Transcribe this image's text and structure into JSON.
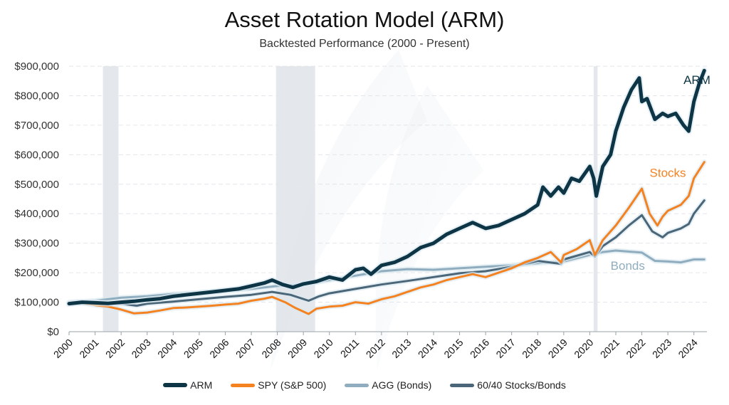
{
  "chart_data": {
    "type": "line",
    "title": "Asset Rotation Model (ARM)",
    "subtitle": "Backtested Performance (2000 - Present)",
    "ylim": [
      0,
      900000
    ],
    "yticks": [
      "$0",
      "$100,000",
      "$200,000",
      "$300,000",
      "$400,000",
      "$500,000",
      "$600,000",
      "$700,000",
      "$800,000",
      "$900,000"
    ],
    "xlim": [
      2000,
      2024.5
    ],
    "xticks": [
      "2000",
      "2001",
      "2002",
      "2003",
      "2004",
      "2005",
      "2006",
      "2007",
      "2008",
      "2009",
      "2010",
      "2011",
      "2012",
      "2013",
      "2014",
      "2015",
      "2016",
      "2017",
      "2018",
      "2019",
      "2020",
      "2021",
      "2022",
      "2023",
      "2024"
    ],
    "grid": true,
    "legend_position": "bottom",
    "shaded_periods": [
      [
        2001.3,
        2001.9
      ],
      [
        2007.95,
        2009.45
      ],
      [
        2020.15,
        2020.3
      ]
    ],
    "end_labels": [
      "ARM",
      "Stocks",
      "Bonds"
    ],
    "series": [
      {
        "name": "ARM",
        "color": "#0d3545",
        "x": [
          2000,
          2000.5,
          2001,
          2001.5,
          2002,
          2002.5,
          2003,
          2003.5,
          2004,
          2004.5,
          2005,
          2005.5,
          2006,
          2006.5,
          2007,
          2007.5,
          2007.8,
          2008.2,
          2008.6,
          2009,
          2009.5,
          2010,
          2010.5,
          2011,
          2011.3,
          2011.6,
          2012,
          2012.5,
          2013,
          2013.5,
          2014,
          2014.5,
          2015,
          2015.5,
          2016,
          2016.5,
          2017,
          2017.5,
          2018,
          2018.2,
          2018.5,
          2018.8,
          2019,
          2019.3,
          2019.6,
          2020,
          2020.15,
          2020.25,
          2020.5,
          2020.8,
          2021,
          2021.3,
          2021.6,
          2021.9,
          2022,
          2022.2,
          2022.5,
          2022.8,
          2023,
          2023.3,
          2023.6,
          2023.8,
          2024,
          2024.2,
          2024.4
        ],
        "values": [
          95000,
          100000,
          98000,
          96000,
          100000,
          103000,
          108000,
          112000,
          120000,
          125000,
          130000,
          135000,
          140000,
          145000,
          155000,
          165000,
          175000,
          160000,
          150000,
          162000,
          170000,
          185000,
          175000,
          210000,
          215000,
          195000,
          225000,
          235000,
          255000,
          285000,
          300000,
          330000,
          350000,
          370000,
          350000,
          360000,
          380000,
          400000,
          430000,
          490000,
          460000,
          490000,
          470000,
          520000,
          510000,
          560000,
          520000,
          460000,
          560000,
          600000,
          680000,
          760000,
          820000,
          860000,
          780000,
          790000,
          720000,
          740000,
          730000,
          740000,
          700000,
          680000,
          780000,
          840000,
          885000
        ]
      },
      {
        "name": "SPY (S&P 500)",
        "color": "#f58220",
        "x": [
          2000,
          2000.5,
          2001,
          2001.5,
          2002,
          2002.5,
          2003,
          2003.5,
          2004,
          2004.5,
          2005,
          2005.5,
          2006,
          2006.5,
          2007,
          2007.5,
          2007.8,
          2008.3,
          2008.7,
          2009.2,
          2009.5,
          2010,
          2010.5,
          2011,
          2011.5,
          2012,
          2012.5,
          2013,
          2013.5,
          2014,
          2014.5,
          2015,
          2015.5,
          2016,
          2016.5,
          2017,
          2017.5,
          2018,
          2018.5,
          2018.9,
          2019,
          2019.5,
          2020,
          2020.2,
          2020.5,
          2021,
          2021.5,
          2022,
          2022.3,
          2022.6,
          2022.8,
          2023,
          2023.5,
          2023.8,
          2024,
          2024.4
        ],
        "values": [
          95000,
          98000,
          90000,
          85000,
          75000,
          62000,
          65000,
          72000,
          80000,
          82000,
          85000,
          88000,
          92000,
          95000,
          105000,
          112000,
          118000,
          100000,
          80000,
          60000,
          78000,
          85000,
          88000,
          100000,
          95000,
          110000,
          120000,
          135000,
          150000,
          160000,
          175000,
          185000,
          195000,
          185000,
          200000,
          215000,
          235000,
          250000,
          270000,
          235000,
          260000,
          280000,
          310000,
          260000,
          310000,
          360000,
          420000,
          485000,
          400000,
          360000,
          390000,
          410000,
          430000,
          460000,
          520000,
          575000
        ]
      },
      {
        "name": "AGG (Bonds)",
        "color": "#8fadbe",
        "x": [
          2000,
          2001,
          2002,
          2003,
          2004,
          2005,
          2006,
          2007,
          2008,
          2009,
          2010,
          2011,
          2012,
          2013,
          2014,
          2015,
          2016,
          2017,
          2018,
          2019,
          2020,
          2020.5,
          2021,
          2022,
          2022.5,
          2023,
          2023.5,
          2024,
          2024.4
        ],
        "values": [
          100000,
          105000,
          115000,
          120000,
          128000,
          132000,
          138000,
          145000,
          155000,
          160000,
          175000,
          190000,
          205000,
          212000,
          210000,
          215000,
          220000,
          225000,
          232000,
          238000,
          260000,
          270000,
          275000,
          268000,
          240000,
          238000,
          235000,
          245000,
          245000
        ]
      },
      {
        "name": "60/40 Stocks/Bonds",
        "color": "#4a6678",
        "x": [
          2000,
          2001,
          2002,
          2002.6,
          2003,
          2004,
          2005,
          2006,
          2007,
          2007.8,
          2008.5,
          2009.2,
          2009.6,
          2010,
          2011,
          2012,
          2013,
          2014,
          2015,
          2016,
          2017,
          2018,
          2018.9,
          2019,
          2020,
          2020.2,
          2020.5,
          2021,
          2021.5,
          2022,
          2022.4,
          2022.8,
          2023,
          2023.5,
          2023.8,
          2024,
          2024.4
        ],
        "values": [
          95000,
          100000,
          95000,
          88000,
          95000,
          102000,
          110000,
          118000,
          125000,
          135000,
          125000,
          105000,
          120000,
          130000,
          145000,
          160000,
          172000,
          185000,
          198000,
          205000,
          220000,
          240000,
          230000,
          245000,
          270000,
          255000,
          290000,
          320000,
          360000,
          395000,
          340000,
          320000,
          335000,
          350000,
          365000,
          400000,
          445000
        ]
      }
    ]
  }
}
